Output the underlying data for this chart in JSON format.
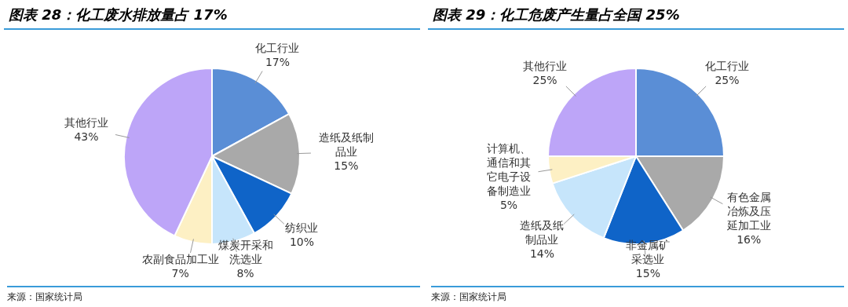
{
  "chart_data": [
    {
      "type": "pie",
      "title": "图表 28：化工废水排放量占 17%",
      "categories": [
        "化工行业",
        "造纸及纸制品业",
        "纺织业",
        "煤炭开采和洗选业",
        "农副食品加工业",
        "其他行业"
      ],
      "values": [
        17,
        15,
        10,
        8,
        7,
        43
      ],
      "colors": [
        "#5a8ed6",
        "#a9a9a9",
        "#0f64c8",
        "#c6e5fb",
        "#fdf0c4",
        "#bda5f8"
      ],
      "value_labels": [
        "17%",
        "15%",
        "10%",
        "8%",
        "7%",
        "43%"
      ],
      "legend": false,
      "annotations": [
        "来源：国家统计局"
      ]
    },
    {
      "type": "pie",
      "title": "图表 29：化工危废产生量占全国 25%",
      "categories": [
        "化工行业",
        "有色金属冶炼及压延加工业",
        "非金属矿采选业",
        "造纸及纸制品业",
        "计算机、通信和其它电子设备制造业",
        "其他行业"
      ],
      "values": [
        25,
        16,
        15,
        14,
        5,
        25
      ],
      "colors": [
        "#5a8ed6",
        "#a9a9a9",
        "#0f64c8",
        "#c6e5fb",
        "#fdf0c4",
        "#bda5f8"
      ],
      "value_labels": [
        "25%",
        "16%",
        "15%",
        "14%",
        "5%",
        "25%"
      ],
      "legend": false,
      "annotations": [
        "来源：国家统计局"
      ]
    }
  ]
}
